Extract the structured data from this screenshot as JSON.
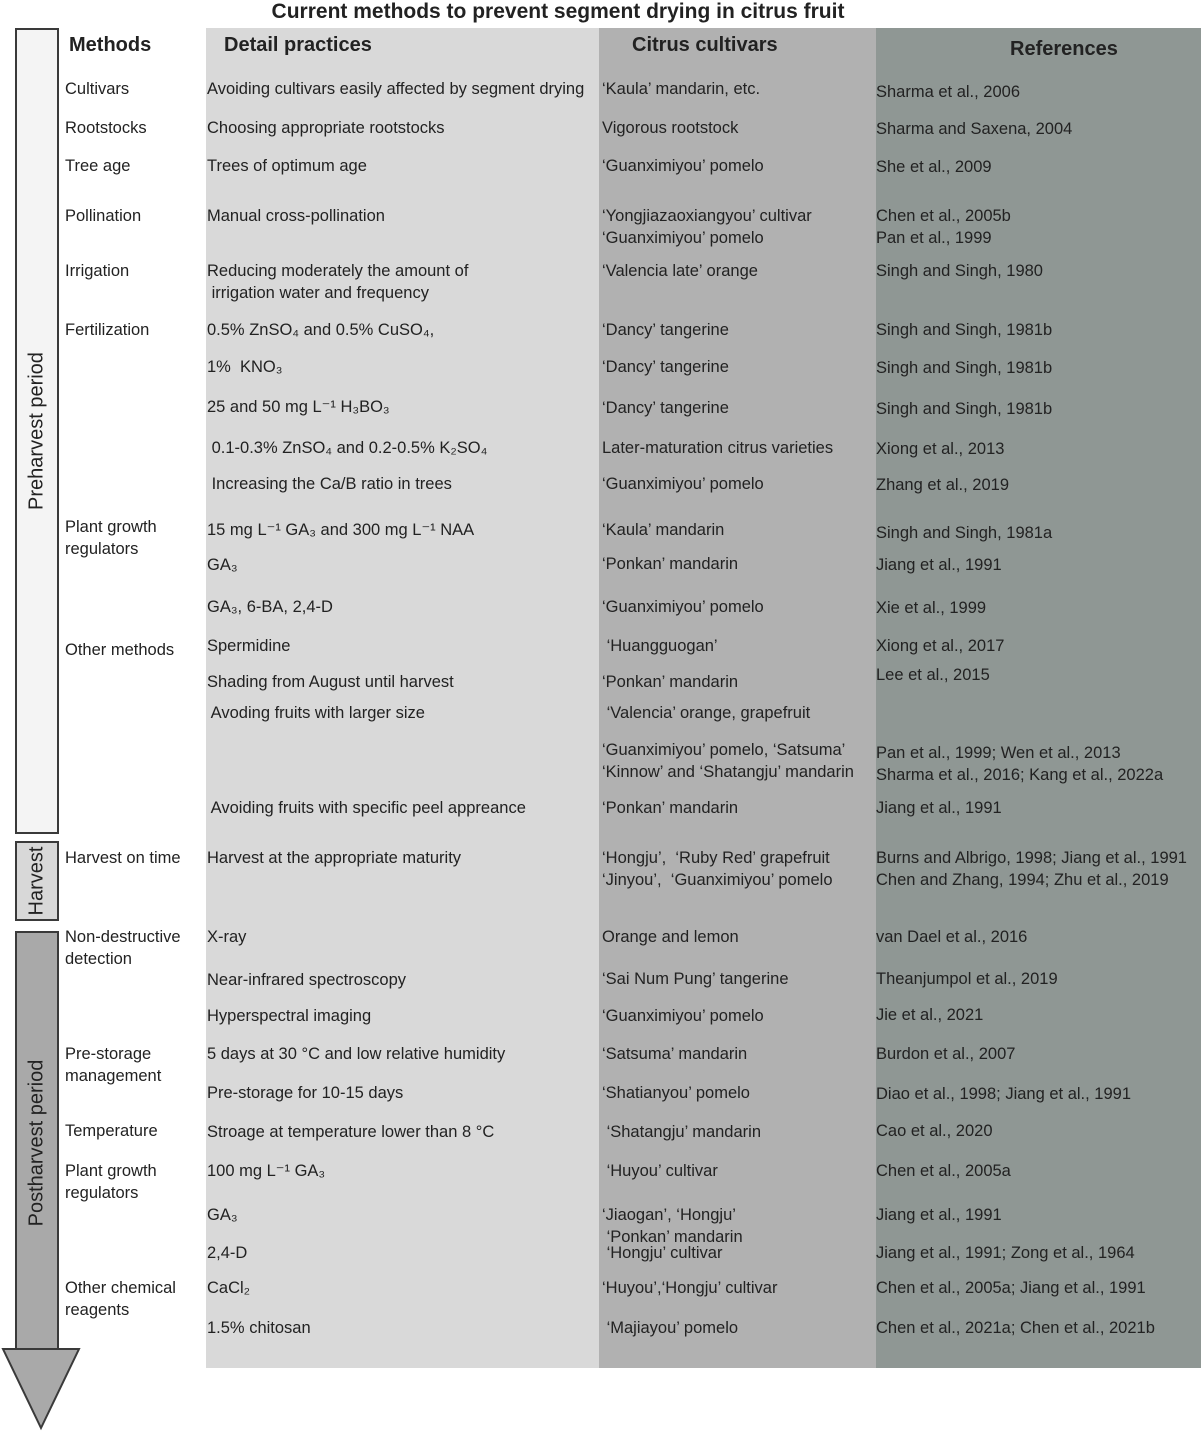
{
  "title": "Current methods to prevent segment drying in citrus fruit",
  "headers": {
    "methods": "Methods",
    "practices": "Detail practices",
    "cultivars": "Citrus cultivars",
    "references": "References"
  },
  "periods": {
    "preharvest": "Preharvest period",
    "harvest": "Harvest",
    "postharvest": "Postharvest period"
  },
  "colors": {
    "preharvest": "#f4f4f4",
    "harvest": "#d8d8d8",
    "postharvest": "#a9a9a9",
    "practices_col": "#d9d9d9",
    "cultivars_col": "#b1b1b1",
    "references_col": "#8f9794"
  },
  "rows": [
    {
      "method": "Cultivars",
      "practice": "Avoiding cultivars easily affected by segment drying",
      "cultivar": "‘Kaula’ mandarin, etc.",
      "reference": "Sharma et al., 2006"
    },
    {
      "method": "Rootstocks",
      "practice": "Choosing appropriate rootstocks",
      "cultivar": "Vigorous rootstock",
      "reference": "Sharma and Saxena, 2004"
    },
    {
      "method": "Tree age",
      "practice": "Trees of optimum age",
      "cultivar": "‘Guanximiyou’ pomelo",
      "reference": "She et al., 2009"
    },
    {
      "method": "Pollination",
      "practice": "Manual cross-pollination",
      "cultivar": "‘Yongjiazaoxiangyou’ cultivar\n‘Guanximiyou’ pomelo",
      "reference": "Chen et al., 2005b\nPan et al., 1999"
    },
    {
      "method": "Irrigation",
      "practice": "Reducing moderately the amount of\n irrigation water and frequency",
      "cultivar": "‘Valencia late’ orange",
      "reference": "Singh and Singh, 1980"
    },
    {
      "method": "Fertilization",
      "practice": "0.5% ZnSO₄ and 0.5% CuSO₄,",
      "cultivar": "‘Dancy’ tangerine",
      "reference": "Singh and Singh, 1981b"
    },
    {
      "method": "",
      "practice": "1%  KNO₃",
      "cultivar": "‘Dancy’ tangerine",
      "reference": "Singh and Singh, 1981b"
    },
    {
      "method": "",
      "practice": "25 and 50 mg L⁻¹ H₃BO₃",
      "cultivar": "‘Dancy’ tangerine",
      "reference": "Singh and Singh, 1981b"
    },
    {
      "method": "",
      "practice": " 0.1-0.3% ZnSO₄ and 0.2-0.5% K₂SO₄",
      "cultivar": "Later-maturation citrus varieties",
      "reference": "Xiong et al., 2013"
    },
    {
      "method": "",
      "practice": " Increasing the Ca/B ratio in trees",
      "cultivar": "‘Guanximiyou’ pomelo",
      "reference": "Zhang et al., 2019"
    },
    {
      "method": "Plant growth\nregulators",
      "practice": "15 mg L⁻¹ GA₃ and 300 mg L⁻¹ NAA",
      "cultivar": "‘Kaula’ mandarin",
      "reference": "Singh and Singh, 1981a"
    },
    {
      "method": "",
      "practice": "GA₃",
      "cultivar": "‘Ponkan’ mandarin",
      "reference": "Jiang et al., 1991"
    },
    {
      "method": "",
      "practice": "GA₃, 6-BA, 2,4-D",
      "cultivar": "‘Guanximiyou’ pomelo",
      "reference": "Xie et al., 1999"
    },
    {
      "method": "Other methods",
      "practice": "Spermidine",
      "cultivar": " ‘Huangguogan’",
      "reference": "Xiong et al., 2017"
    },
    {
      "method": "",
      "practice": "Shading from August until harvest",
      "cultivar": "‘Ponkan’ mandarin",
      "reference": "Lee et al., 2015"
    },
    {
      "method": "",
      "practice": " Avoding fruits with larger size",
      "cultivar": " ‘Valencia’ orange, grapefruit",
      "reference": ""
    },
    {
      "method": "",
      "practice": "",
      "cultivar": "‘Guanximiyou’ pomelo, ‘Satsuma’\n‘Kinnow’ and ‘Shatangju’ mandarin",
      "reference": "Pan et al., 1999; Wen et al., 2013\nSharma et al., 2016; Kang et al., 2022a"
    },
    {
      "method": "",
      "practice": " Avoiding fruits with specific peel appreance",
      "cultivar": "‘Ponkan’ mandarin",
      "reference": "Jiang et al., 1991"
    },
    {
      "method": "Harvest on time",
      "practice": "Harvest at the appropriate maturity",
      "cultivar": "‘Hongju’,  ‘Ruby Red’ grapefruit\n‘Jinyou’,  ‘Guanximiyou’ pomelo",
      "reference": "Burns and Albrigo, 1998; Jiang et al., 1991\nChen and Zhang, 1994; Zhu et al., 2019"
    },
    {
      "method": "Non-destructive\ndetection",
      "practice": "X-ray",
      "cultivar": "Orange and lemon",
      "reference": "van Dael et al., 2016"
    },
    {
      "method": "",
      "practice": "Near-infrared spectroscopy",
      "cultivar": "‘Sai Num Pung’ tangerine",
      "reference": "Theanjumpol et al., 2019"
    },
    {
      "method": "",
      "practice": "Hyperspectral imaging",
      "cultivar": "‘Guanximiyou’ pomelo",
      "reference": "Jie et al., 2021"
    },
    {
      "method": "Pre-storage\nmanagement",
      "practice": "5 days at 30 °C and low relative humidity",
      "cultivar": "‘Satsuma’ mandarin",
      "reference": "Burdon et al., 2007"
    },
    {
      "method": "",
      "practice": "Pre-storage for 10-15 days",
      "cultivar": "‘Shatianyou’ pomelo",
      "reference": "Diao et al., 1998; Jiang et al., 1991"
    },
    {
      "method": "Temperature",
      "practice": "Stroage at temperature lower than 8 °C",
      "cultivar": " ‘Shatangju’ mandarin",
      "reference": "Cao et al., 2020"
    },
    {
      "method": "Plant growth\nregulators",
      "practice": "100 mg L⁻¹ GA₃",
      "cultivar": " ‘Huyou’ cultivar",
      "reference": "Chen et al., 2005a"
    },
    {
      "method": "",
      "practice": "GA₃",
      "cultivar": "‘Jiaogan’, ‘Hongju’\n ‘Ponkan’ mandarin",
      "reference": "Jiang et al., 1991"
    },
    {
      "method": "",
      "practice": "2,4-D",
      "cultivar": " ‘Hongju’ cultivar",
      "reference": "Jiang et al., 1991; Zong et al., 1964"
    },
    {
      "method": "Other chemical\nreagents",
      "practice": "CaCl₂",
      "cultivar": "‘Huyou’,‘Hongju’ cultivar",
      "reference": "Chen et al., 2005a; Jiang et al., 1991"
    },
    {
      "method": "",
      "practice": "1.5% chitosan",
      "cultivar": " ‘Majiayou’ pomelo",
      "reference": "Chen et al., 2021a; Chen et al., 2021b"
    }
  ]
}
